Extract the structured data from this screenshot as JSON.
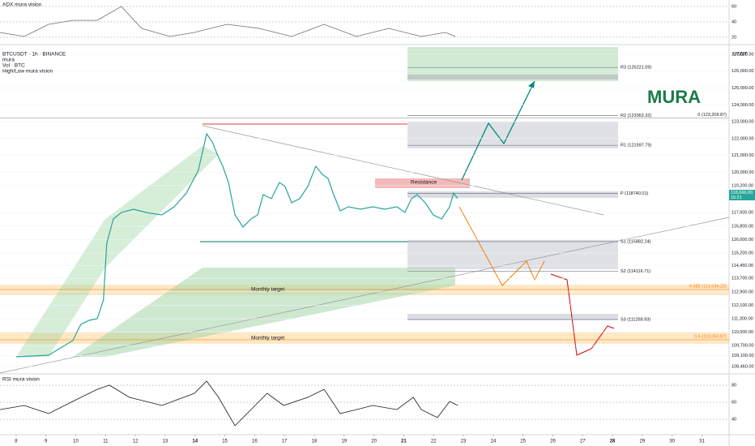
{
  "chart_data": [
    {
      "type": "line",
      "symbol": "BTCUSDT · 1h · BINANCE",
      "indicators": [
        "mura",
        "Vol · BTC",
        "High/Low mura vision"
      ],
      "watermark": "MURA",
      "y_unit": "USDT",
      "color": "#26a69a",
      "xlim": [
        7.46,
        31.91
      ],
      "xticks": [
        8,
        9,
        10,
        11,
        12,
        13,
        14,
        15,
        16,
        17,
        18,
        19,
        20,
        21,
        22,
        23,
        24,
        25,
        26,
        27,
        28,
        29,
        30,
        31
      ],
      "ylim": [
        108075,
        127578
      ],
      "yticks": [
        {
          "value": 127000,
          "label": "127,000.00"
        },
        {
          "value": 126000,
          "label": "126,000.00"
        },
        {
          "value": 125000,
          "label": "125,000.00"
        },
        {
          "value": 124000,
          "label": "124,000.00"
        },
        {
          "value": 123000,
          "label": "123,000.00"
        },
        {
          "value": 122000,
          "label": "122,000.00"
        },
        {
          "value": 121000,
          "label": "121,000.00"
        },
        {
          "value": 120000,
          "label": "120,000.00"
        },
        {
          "value": 119200,
          "label": "119,200.00"
        },
        {
          "value": 117600,
          "label": "117,600.00"
        },
        {
          "value": 116800,
          "label": "116,800.00"
        },
        {
          "value": 116000,
          "label": "116,000.00"
        },
        {
          "value": 115200,
          "label": "115,200.00"
        },
        {
          "value": 114450,
          "label": "114,450.00"
        },
        {
          "value": 113700,
          "label": "113,700.00"
        },
        {
          "value": 112900,
          "label": "112,900.00"
        },
        {
          "value": 112100,
          "label": "112,100.00"
        },
        {
          "value": 111300,
          "label": "111,300.00"
        },
        {
          "value": 110500,
          "label": "110,500.00"
        },
        {
          "value": 109700,
          "label": "109,700.00"
        },
        {
          "value": 109100,
          "label": "109,100.00"
        },
        {
          "value": 108460,
          "label": "108,460.00"
        }
      ],
      "x": [
        8.0,
        9.09,
        9.9,
        10.17,
        10.45,
        10.72,
        10.93,
        11.04,
        11.26,
        11.53,
        11.94,
        12.35,
        12.89,
        13.3,
        13.71,
        14.11,
        14.39,
        14.58,
        14.74,
        14.93,
        15.12,
        15.34,
        15.61,
        15.88,
        16.1,
        16.29,
        16.56,
        16.83,
        17.02,
        17.24,
        17.51,
        17.78,
        18.05,
        18.27,
        18.46,
        18.65,
        18.87,
        19.14,
        19.55,
        19.96,
        20.36,
        20.77,
        21.04,
        21.26,
        21.45,
        21.72,
        21.99,
        22.27,
        22.54,
        22.67,
        22.81
      ],
      "values": [
        109040,
        109136,
        110003,
        110966,
        111207,
        111303,
        112411,
        115781,
        117226,
        117611,
        117803,
        117611,
        117466,
        117948,
        118766,
        120115,
        122281,
        121800,
        121078,
        120355,
        119392,
        117466,
        116744,
        117226,
        117466,
        118670,
        118429,
        119392,
        119152,
        118189,
        118429,
        119152,
        120355,
        119874,
        119633,
        118670,
        117707,
        117948,
        117803,
        117948,
        117803,
        117948,
        117611,
        118429,
        118670,
        118189,
        117466,
        117226,
        117948,
        118766,
        118429
      ],
      "price_label": {
        "value": 118666,
        "label": "118,666.00"
      },
      "countdown": "16:21",
      "levels": [
        {
          "value": 126221.09,
          "label": "R3 (126221.09)"
        },
        {
          "value": 123363.32,
          "label": "R2 (123363.32)"
        },
        {
          "value": 121597.79,
          "label": "R1 (121597.79)"
        },
        {
          "value": 118740.01,
          "label": "P (118740.01)"
        },
        {
          "value": 115882.24,
          "label": "S1 (115882.24)"
        },
        {
          "value": 114116.71,
          "label": "S2 (114116.71)"
        },
        {
          "value": 111258.93,
          "label": "S3 (111258.93)"
        }
      ],
      "fib_levels": [
        {
          "value": 123209.87,
          "label": "0 (123,209.87)"
        },
        {
          "value": 113036.22,
          "label": "0.382 (113,036.22)"
        },
        {
          "value": 110050.87,
          "label": "0.5 (110,050.87)"
        }
      ],
      "annotations": [
        "Resistance",
        "Monthly target",
        "Monthly target"
      ]
    },
    {
      "type": "line",
      "title": "ADX mura vision",
      "color": "#6a6d78",
      "xlim": [
        7.46,
        31.91
      ],
      "ylim": [
        10.5,
        68.4
      ],
      "yticks": [
        60,
        40,
        20
      ],
      "x": [
        7.46,
        8.27,
        9.09,
        9.9,
        10.72,
        11.53,
        12.21,
        13.16,
        13.98,
        15.07,
        16.15,
        17.24,
        18.33,
        19.41,
        20.5,
        21.59,
        22.4,
        22.73
      ],
      "values": [
        26.3,
        21,
        36.8,
        42,
        42,
        60,
        31.6,
        21,
        26.3,
        36.8,
        31.6,
        21,
        36.8,
        21,
        31.6,
        21,
        26.3,
        21
      ]
    },
    {
      "type": "line",
      "title": "RSI mura vision",
      "color": "#131722",
      "xlim": [
        7.46,
        31.91
      ],
      "ylim": [
        22.9,
        92.4
      ],
      "yticks": [
        80,
        60,
        40
      ],
      "x": [
        7.46,
        8.27,
        9.09,
        9.9,
        10.72,
        11.13,
        11.8,
        12.89,
        13.98,
        14.39,
        14.79,
        15.34,
        15.88,
        16.42,
        16.97,
        17.78,
        18.33,
        18.87,
        19.41,
        19.96,
        20.77,
        21.32,
        21.59,
        22.13,
        22.54,
        22.81
      ],
      "values": [
        51.4,
        56.2,
        46.7,
        61,
        75.2,
        80,
        65.7,
        56.2,
        70.5,
        84.8,
        65.7,
        32.4,
        51.4,
        70.5,
        56.2,
        65.7,
        75.2,
        46.7,
        51.4,
        56.2,
        51.4,
        65.7,
        51.4,
        41.9,
        61,
        56.2
      ]
    }
  ]
}
